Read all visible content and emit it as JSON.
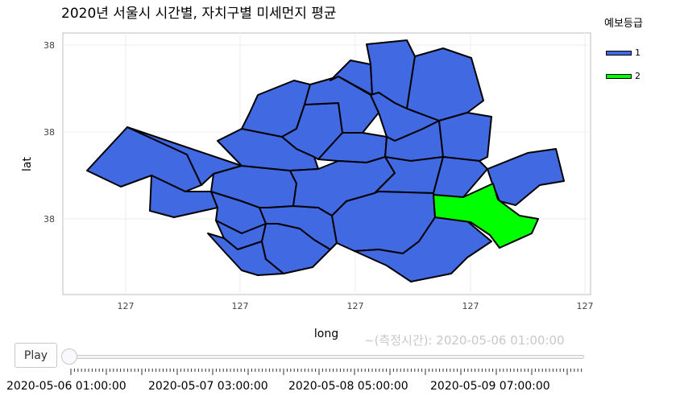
{
  "chart_data": {
    "type": "choropleth-map",
    "title": "2020년 서울시 시간별, 자치구별 미세먼지 평균",
    "xlabel": "long",
    "ylabel": "lat",
    "x_ticks": [
      "127",
      "127",
      "127",
      "127",
      "127"
    ],
    "y_ticks": [
      "38",
      "38",
      "38"
    ],
    "grid": true,
    "legend": {
      "title": "예보등급",
      "position": "right",
      "entries": [
        {
          "label": "1",
          "color": "#4169E1"
        },
        {
          "label": "2",
          "color": "#00FF00"
        }
      ]
    },
    "districts_by_grade": {
      "1": 24,
      "2": 1
    },
    "current_frame": "~(측정시간): 2020-05-06 01:00:00"
  },
  "player": {
    "play_label": "Play",
    "step_labels": [
      "2020-05-06 01:00:00",
      "2020-05-07 03:00:00",
      "2020-05-08 05:00:00",
      "2020-05-09 07:00:00"
    ],
    "current_index": 0
  }
}
